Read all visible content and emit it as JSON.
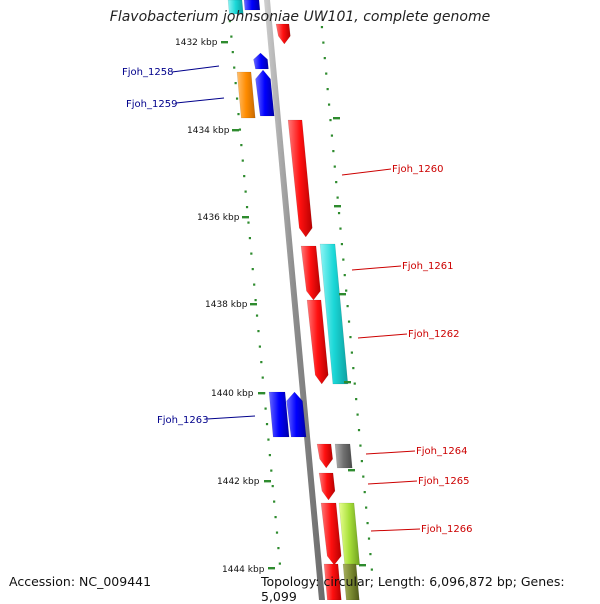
{
  "title": "Flavobacterium johnsoniae UW101, complete genome",
  "footer": {
    "accession": "Accession: NC_009441",
    "summary": "Topology: circular; Length: 6,096,872 bp; Genes: 5,099"
  },
  "colors": {
    "backbone": "#8c8c8c",
    "tick": "#2e8b2e",
    "label_left": "#00008b",
    "label_right": "#cc0000"
  },
  "ticks": [
    {
      "label": "1432 kbp"
    },
    {
      "label": "1434 kbp"
    },
    {
      "label": "1436 kbp"
    },
    {
      "label": "1438 kbp"
    },
    {
      "label": "1440 kbp"
    },
    {
      "label": "1442 kbp"
    },
    {
      "label": "1444 kbp"
    }
  ],
  "gene_labels": [
    {
      "name": "Fjoh_1258",
      "side": "left"
    },
    {
      "name": "Fjoh_1259",
      "side": "left"
    },
    {
      "name": "Fjoh_1260",
      "side": "right"
    },
    {
      "name": "Fjoh_1261",
      "side": "right"
    },
    {
      "name": "Fjoh_1262",
      "side": "right"
    },
    {
      "name": "Fjoh_1263",
      "side": "left"
    },
    {
      "name": "Fjoh_1264",
      "side": "right"
    },
    {
      "name": "Fjoh_1265",
      "side": "right"
    },
    {
      "name": "Fjoh_1266",
      "side": "right"
    }
  ]
}
